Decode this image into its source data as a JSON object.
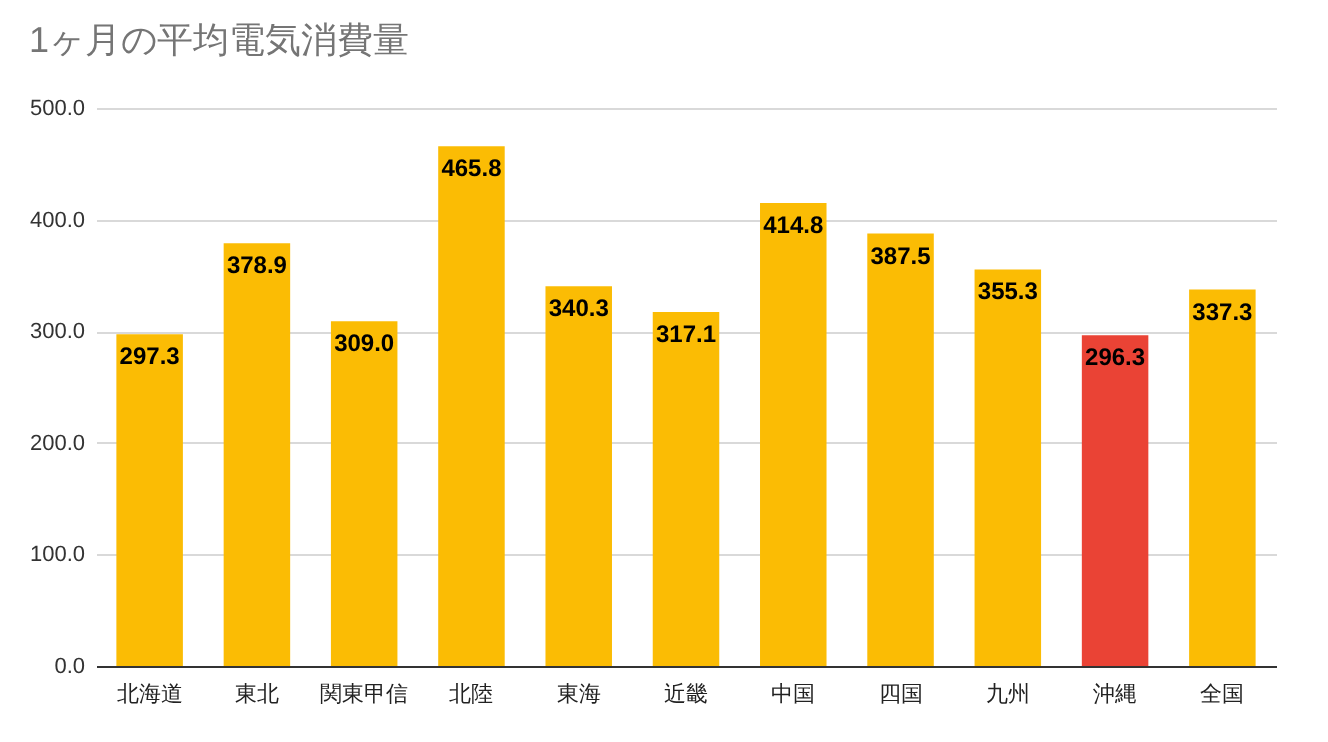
{
  "chart_data": {
    "type": "bar",
    "title": "1ヶ月の平均電気消費量",
    "categories": [
      "北海道",
      "東北",
      "関東甲信",
      "北陸",
      "東海",
      "近畿",
      "中国",
      "四国",
      "九州",
      "沖縄",
      "全国"
    ],
    "values": [
      297.3,
      378.9,
      309.0,
      465.8,
      340.3,
      317.1,
      414.8,
      387.5,
      355.3,
      296.3,
      337.3
    ],
    "colors": [
      "#fbbc04",
      "#fbbc04",
      "#fbbc04",
      "#fbbc04",
      "#fbbc04",
      "#fbbc04",
      "#fbbc04",
      "#fbbc04",
      "#fbbc04",
      "#ea4335",
      "#fbbc04"
    ],
    "value_labels": [
      "297.3",
      "378.9",
      "309.0",
      "465.8",
      "340.3",
      "317.1",
      "414.8",
      "387.5",
      "355.3",
      "296.3",
      "337.3"
    ],
    "ylim": [
      0,
      500
    ],
    "yticks": [
      {
        "value": 0,
        "label": "0.0"
      },
      {
        "value": 100,
        "label": "100.0"
      },
      {
        "value": 200,
        "label": "200.0"
      },
      {
        "value": 300,
        "label": "300.0"
      },
      {
        "value": 400,
        "label": "400.0"
      },
      {
        "value": 500,
        "label": "500.0"
      }
    ],
    "grid": "y"
  }
}
